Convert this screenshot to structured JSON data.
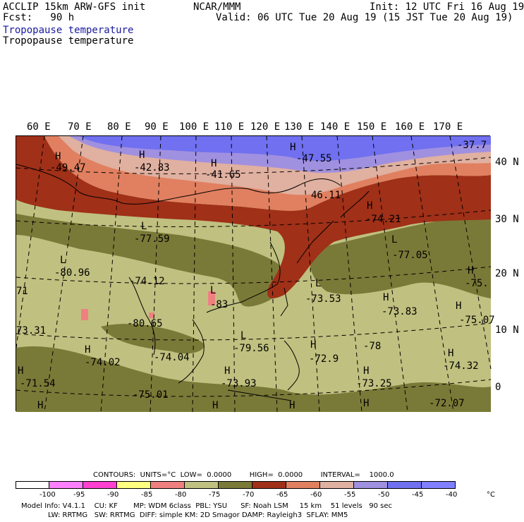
{
  "header": {
    "model": "ACCLIP 15km ARW-GFS init",
    "org": "NCAR/MMM",
    "init": "Init: 12 UTC Fri 16 Aug 19",
    "fcst": "Fcst:   90 h",
    "valid": "Valid: 06 UTC Tue 20 Aug 19 (15 JST Tue 20 Aug 19)",
    "field1": "Tropopause temperature",
    "field2": "Tropopause temperature"
  },
  "axes": {
    "lon_labels": [
      "60 E",
      "70 E",
      "80 E",
      "90 E",
      "100 E",
      "110 E",
      "120 E",
      "130 E",
      "140 E",
      "150 E",
      "160 E",
      "170 E"
    ],
    "lat_labels": [
      "40 N",
      "30 N",
      "20 N",
      "10 N",
      "0"
    ]
  },
  "map_labels": {
    "h1": "H",
    "v1": "-49.47",
    "h2": "H",
    "v2": "-42.83",
    "h3": "H",
    "v3": "-41.65",
    "h4": "H",
    "v4": "-47.55",
    "v5": "-37.7",
    "v6": "46.11",
    "h7": "H",
    "v7": "-74.21",
    "l8": "L",
    "v8": "-77.59",
    "l9": "L",
    "v9": "-77.05",
    "l10": "L",
    "v10": "-80.96",
    "v11": "-74.12",
    "h12": "H",
    "v12": "-75.",
    "v13": "71",
    "l14": "L",
    "v14": "-73.53",
    "h15": "H",
    "v15": "-73.83",
    "h16": "H",
    "v16": "-75.07",
    "v17": "-80.65",
    "l18": "L",
    "v18": "-83",
    "v19": "73.31",
    "l20": "L",
    "v20": "-79.56",
    "h21": "H",
    "v21": "-72.9",
    "v22": "-78",
    "h23": "H",
    "v23": "-74.32",
    "h24": "H",
    "v24": "-74.02",
    "v25": "-74.04",
    "h26": "H",
    "v26": "-71.54",
    "h27": "H",
    "v27": "-73.93",
    "h28": "H",
    "v28": "-73.25",
    "v29": "-75.01",
    "v30": "-72.07",
    "h31": "H",
    "h32": "H",
    "h33": "H",
    "h34": "H"
  },
  "colorbar": {
    "line": "CONTOURS:  UNITS=°C  LOW=  0.0000        HIGH=  0.0000        INTERVAL=    1000.0",
    "units": "°C",
    "ticks": [
      "-100",
      "-95",
      "-90",
      "-85",
      "-80",
      "-75",
      "-70",
      "-65",
      "-60",
      "-55",
      "-50",
      "-45",
      "-40"
    ],
    "colors": [
      "#ffffff",
      "#ff80ff",
      "#ff40d0",
      "#ffff80",
      "#f08080",
      "#c0c080",
      "#7a7a38",
      "#a03018",
      "#e08060",
      "#e0b0a0",
      "#a090e0",
      "#7070f0",
      "#8080ff"
    ]
  },
  "footer": {
    "line1": "Model Info: V4.1.1    CU: KF       MP: WDM 6class  PBL: YSU      SF: Noah LSM     15 km    51 levels   90 sec",
    "line2": "LW: RRTMG   SW: RRTMG  DIFF: simple KM: 2D Smagor DAMP: Rayleigh3  SFLAY: MM5"
  }
}
